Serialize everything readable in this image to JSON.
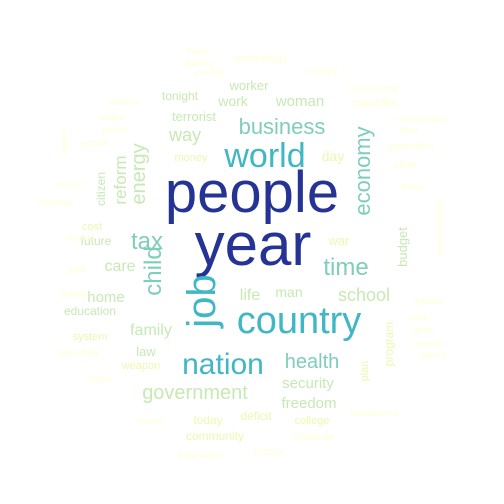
{
  "palette": {
    "deep_blue": "#253494",
    "blue": "#2c7fb8",
    "teal": "#41b6c4",
    "aqua": "#7fcdbb",
    "mint": "#c7e9b4",
    "pale": "#edf8b1",
    "cream": "#ffffd9"
  },
  "words": [
    {
      "text": "people",
      "color": "deep_blue",
      "weight": 100
    },
    {
      "text": "year",
      "color": "deep_blue",
      "weight": 96
    },
    {
      "text": "country",
      "color": "teal",
      "weight": 60
    },
    {
      "text": "job",
      "color": "teal",
      "weight": 58
    },
    {
      "text": "world",
      "color": "teal",
      "weight": 50
    },
    {
      "text": "nation",
      "color": "teal",
      "weight": 44
    },
    {
      "text": "economy",
      "color": "aqua",
      "weight": 38
    },
    {
      "text": "time",
      "color": "aqua",
      "weight": 36
    },
    {
      "text": "tax",
      "color": "aqua",
      "weight": 34
    },
    {
      "text": "child",
      "color": "aqua",
      "weight": 34
    },
    {
      "text": "business",
      "color": "aqua",
      "weight": 32
    },
    {
      "text": "health",
      "color": "aqua",
      "weight": 30
    },
    {
      "text": "government",
      "color": "mint",
      "weight": 30
    },
    {
      "text": "energy",
      "color": "mint",
      "weight": 28
    },
    {
      "text": "school",
      "color": "mint",
      "weight": 26
    },
    {
      "text": "way",
      "color": "mint",
      "weight": 26
    },
    {
      "text": "family",
      "color": "mint",
      "weight": 24
    },
    {
      "text": "security",
      "color": "mint",
      "weight": 24
    },
    {
      "text": "reform",
      "color": "mint",
      "weight": 24
    },
    {
      "text": "care",
      "color": "mint",
      "weight": 22
    },
    {
      "text": "freedom",
      "color": "mint",
      "weight": 22
    },
    {
      "text": "home",
      "color": "mint",
      "weight": 22
    },
    {
      "text": "life",
      "color": "mint",
      "weight": 22
    },
    {
      "text": "work",
      "color": "mint",
      "weight": 22
    },
    {
      "text": "woman",
      "color": "mint",
      "weight": 22
    },
    {
      "text": "man",
      "color": "mint",
      "weight": 20
    },
    {
      "text": "day",
      "color": "pale",
      "weight": 20
    },
    {
      "text": "terrorist",
      "color": "mint",
      "weight": 20
    },
    {
      "text": "worker",
      "color": "mint",
      "weight": 20
    },
    {
      "text": "education",
      "color": "mint",
      "weight": 18
    },
    {
      "text": "law",
      "color": "mint",
      "weight": 18
    },
    {
      "text": "budget",
      "color": "mint",
      "weight": 18
    },
    {
      "text": "war",
      "color": "pale",
      "weight": 18
    },
    {
      "text": "citizen",
      "color": "mint",
      "weight": 16
    },
    {
      "text": "future",
      "color": "mint",
      "weight": 16
    },
    {
      "text": "tonight",
      "color": "mint",
      "weight": 16
    },
    {
      "text": "community",
      "color": "pale",
      "weight": 16
    },
    {
      "text": "today",
      "color": "pale",
      "weight": 16
    },
    {
      "text": "deficit",
      "color": "pale",
      "weight": 16
    },
    {
      "text": "program",
      "color": "pale",
      "weight": 16
    },
    {
      "text": "plan",
      "color": "pale",
      "weight": 14
    },
    {
      "text": "system",
      "color": "pale",
      "weight": 14
    },
    {
      "text": "cost",
      "color": "pale",
      "weight": 14
    },
    {
      "text": "weapon",
      "color": "pale",
      "weight": 14
    },
    {
      "text": "college",
      "color": "pale",
      "weight": 14
    },
    {
      "text": "money",
      "color": "pale",
      "weight": 14
    },
    {
      "text": "technology",
      "color": "cream",
      "weight": 13
    },
    {
      "text": "capability",
      "color": "cream",
      "weight": 13
    },
    {
      "text": "power",
      "color": "cream",
      "weight": 13
    },
    {
      "text": "goal",
      "color": "cream",
      "weight": 13
    },
    {
      "text": "enemy",
      "color": "cream",
      "weight": 12
    },
    {
      "text": "place",
      "color": "cream",
      "weight": 12
    },
    {
      "text": "million",
      "color": "cream",
      "weight": 12
    },
    {
      "text": "generation",
      "color": "cream",
      "weight": 12
    },
    {
      "text": "investment",
      "color": "cream",
      "weight": 12
    },
    {
      "text": "challenge",
      "color": "cream",
      "weight": 12
    },
    {
      "text": "insurance",
      "color": "cream",
      "weight": 12
    },
    {
      "text": "history",
      "color": "cream",
      "weight": 12
    },
    {
      "text": "responsibility",
      "color": "cream",
      "weight": 12
    },
    {
      "text": "force",
      "color": "cream",
      "weight": 12
    },
    {
      "text": "democracy",
      "color": "cream",
      "weight": 11
    },
    {
      "text": "idea",
      "color": "cream",
      "weight": 11
    },
    {
      "text": "effort",
      "color": "cream",
      "weight": 11
    },
    {
      "text": "opportunity",
      "color": "cream",
      "weight": 11
    },
    {
      "text": "spending",
      "color": "cream",
      "weight": 11
    },
    {
      "text": "credit",
      "color": "cream",
      "weight": 11
    },
    {
      "text": "hope",
      "color": "cream",
      "weight": 11
    },
    {
      "text": "student",
      "color": "cream",
      "weight": 11
    },
    {
      "text": "parent",
      "color": "cream",
      "weight": 11
    },
    {
      "text": "crime",
      "color": "cream",
      "weight": 11
    },
    {
      "text": "regime",
      "color": "cream",
      "weight": 11
    },
    {
      "text": "trade",
      "color": "cream",
      "weight": 11
    },
    {
      "text": "product",
      "color": "cream",
      "weight": 11
    },
    {
      "text": "agency",
      "color": "cream",
      "weight": 11
    },
    {
      "text": "benefit",
      "color": "cream",
      "weight": 11
    },
    {
      "text": "market",
      "color": "cream",
      "weight": 11
    },
    {
      "text": "record",
      "color": "cream",
      "weight": 11
    },
    {
      "text": "company",
      "color": "cream",
      "weight": 11
    },
    {
      "text": "growth",
      "color": "cream",
      "weight": 11
    },
    {
      "text": "peace",
      "color": "cream",
      "weight": 11
    },
    {
      "text": "leader",
      "color": "cream",
      "weight": 11
    },
    {
      "text": "military",
      "color": "cream",
      "weight": 11
    }
  ]
}
